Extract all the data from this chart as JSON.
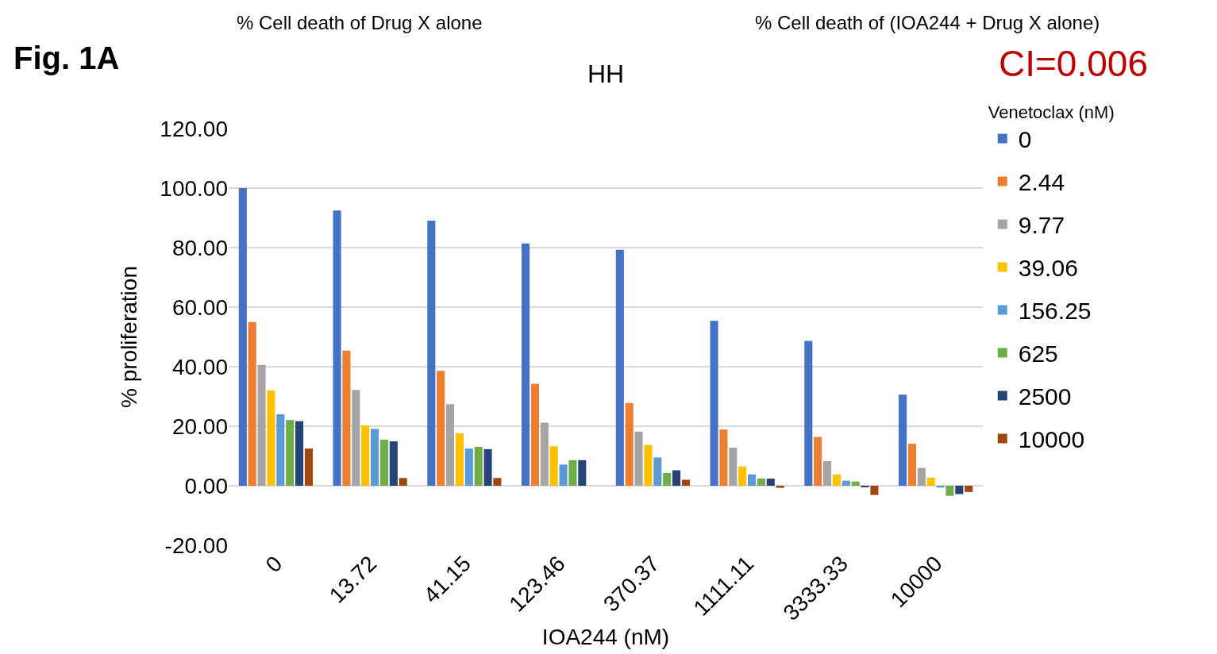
{
  "chart_data": {
    "type": "bar",
    "title": "HH",
    "xlabel": "IOA244 (nM)",
    "ylabel": "% proliferation",
    "legend_title": "Venetoclax (nM)",
    "annotations": [
      "Fig. 1A",
      "% Cell death of Drug X alone",
      "% Cell death of (IOA244 + Drug X alone)",
      "CI=0.006"
    ],
    "categories": [
      "0",
      "13.72",
      "41.15",
      "123.46",
      "370.37",
      "1111.11",
      "3333.33",
      "10000"
    ],
    "series": [
      {
        "name": "0",
        "color": "#4472c4",
        "values": [
          100,
          92.5,
          89.1,
          81.4,
          79.3,
          55.4,
          48.7,
          30.6
        ]
      },
      {
        "name": "2.44",
        "color": "#ed7d31",
        "values": [
          55.0,
          45.4,
          38.6,
          34.3,
          27.8,
          18.9,
          16.4,
          14.1
        ]
      },
      {
        "name": "9.77",
        "color": "#a5a5a5",
        "values": [
          40.6,
          32.2,
          27.4,
          21.2,
          18.2,
          12.8,
          8.3,
          6.0
        ]
      },
      {
        "name": "39.06",
        "color": "#ffc000",
        "values": [
          32.0,
          20.3,
          17.6,
          13.3,
          13.7,
          6.5,
          3.8,
          2.7
        ]
      },
      {
        "name": "156.25",
        "color": "#5b9bd5",
        "values": [
          24.0,
          19.1,
          12.5,
          7.1,
          9.5,
          3.8,
          1.7,
          -0.6
        ]
      },
      {
        "name": "625",
        "color": "#70ad47",
        "values": [
          22.1,
          15.5,
          13.1,
          8.6,
          4.3,
          2.4,
          1.4,
          -3.4
        ]
      },
      {
        "name": "2500",
        "color": "#264478",
        "values": [
          21.7,
          14.9,
          12.3,
          8.6,
          5.2,
          2.4,
          -0.3,
          -2.8
        ]
      },
      {
        "name": "10000",
        "color": "#9e480e",
        "values": [
          12.5,
          2.6,
          2.6,
          0,
          2.0,
          -0.7,
          -3.1,
          -2.1
        ]
      }
    ],
    "ylim": [
      -20,
      120
    ],
    "yticks": [
      {
        "value": -20,
        "label": "-20.00"
      },
      {
        "value": 0,
        "label": "0.00"
      },
      {
        "value": 20,
        "label": "20.00"
      },
      {
        "value": 40,
        "label": "40.00"
      },
      {
        "value": 60,
        "label": "60.00"
      },
      {
        "value": 80,
        "label": "80.00"
      },
      {
        "value": 100,
        "label": "100.00"
      },
      {
        "value": 120,
        "label": "120.00"
      }
    ],
    "grid": "y",
    "legend": "right"
  }
}
